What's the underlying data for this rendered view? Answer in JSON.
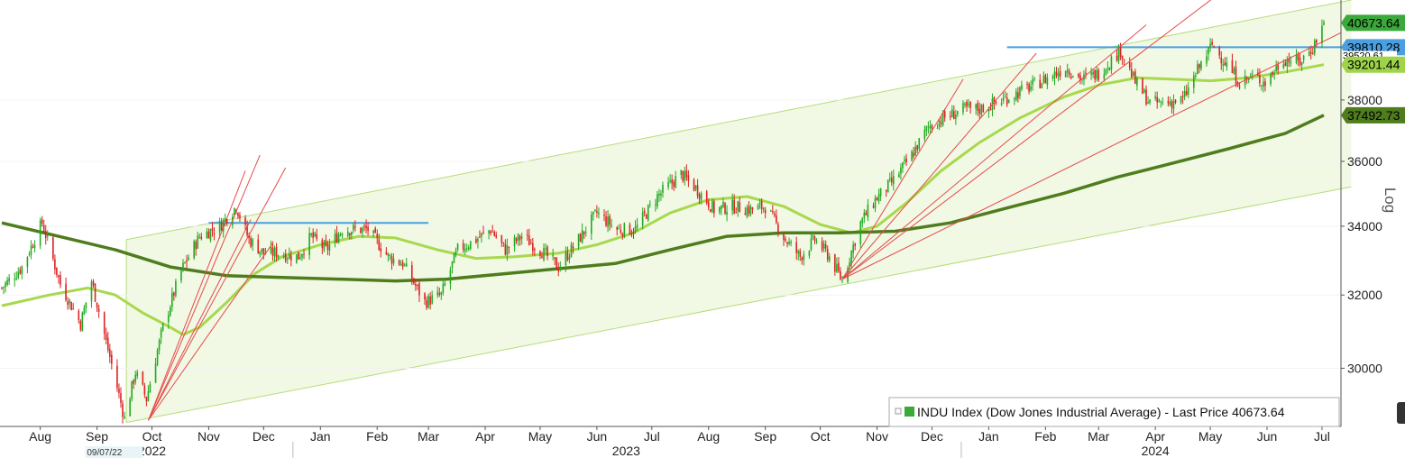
{
  "chart_data": {
    "type": "candlestick",
    "title": "",
    "scale": "log",
    "scale_label": "Log",
    "ylim": [
      28500,
      41500
    ],
    "y_ticks": [
      30000,
      32000,
      34000,
      36000,
      38000
    ],
    "months": [
      {
        "label": "Aug",
        "x": "2022-08-15"
      },
      {
        "label": "Sep",
        "x": "2022-09-15"
      },
      {
        "label": "Oct",
        "x": "2022-10-15"
      },
      {
        "label": "Nov",
        "x": "2022-11-15"
      },
      {
        "label": "Dec",
        "x": "2022-12-15"
      },
      {
        "label": "Jan",
        "x": "2023-01-15"
      },
      {
        "label": "Feb",
        "x": "2023-02-15"
      },
      {
        "label": "Mar",
        "x": "2023-03-15"
      },
      {
        "label": "Apr",
        "x": "2023-04-15"
      },
      {
        "label": "May",
        "x": "2023-05-15"
      },
      {
        "label": "Jun",
        "x": "2023-06-15"
      },
      {
        "label": "Jul",
        "x": "2023-07-15"
      },
      {
        "label": "Aug",
        "x": "2023-08-15"
      },
      {
        "label": "Sep",
        "x": "2023-09-15"
      },
      {
        "label": "Oct",
        "x": "2023-10-15"
      },
      {
        "label": "Nov",
        "x": "2023-11-15"
      },
      {
        "label": "Dec",
        "x": "2023-12-15"
      },
      {
        "label": "Jan",
        "x": "2024-01-15"
      },
      {
        "label": "Feb",
        "x": "2024-02-15"
      },
      {
        "label": "Mar",
        "x": "2024-03-15"
      },
      {
        "label": "Apr",
        "x": "2024-04-15"
      },
      {
        "label": "May",
        "x": "2024-05-15"
      },
      {
        "label": "Jun",
        "x": "2024-06-15"
      },
      {
        "label": "Jul",
        "x": "2024-07-15"
      }
    ],
    "years": [
      {
        "label": "2022",
        "x": "2022-10-15"
      },
      {
        "label": "2023",
        "x": "2023-07-01"
      },
      {
        "label": "2024",
        "x": "2024-04-15"
      }
    ],
    "year_separators": [
      "2022-12-31",
      "2023-12-31"
    ],
    "cursor_date": "09/07/22",
    "cursor_date_x": "2022-09-07",
    "series": [
      {
        "name": "INDU Index",
        "kind": "price",
        "color": "#22aa22",
        "down_color": "#dd2222",
        "points": [
          [
            "2022-07-25",
            32200
          ],
          [
            "2022-08-05",
            32800
          ],
          [
            "2022-08-16",
            34100
          ],
          [
            "2022-08-26",
            32300
          ],
          [
            "2022-09-06",
            31200
          ],
          [
            "2022-09-12",
            32400
          ],
          [
            "2022-09-20",
            30700
          ],
          [
            "2022-09-30",
            28700
          ],
          [
            "2022-10-06",
            29900
          ],
          [
            "2022-10-12",
            29200
          ],
          [
            "2022-10-21",
            31100
          ],
          [
            "2022-10-31",
            32700
          ],
          [
            "2022-11-10",
            33700
          ],
          [
            "2022-11-21",
            34000
          ],
          [
            "2022-11-30",
            34600
          ],
          [
            "2022-12-07",
            33600
          ],
          [
            "2022-12-15",
            33200
          ],
          [
            "2022-12-23",
            33200
          ],
          [
            "2023-01-03",
            33100
          ],
          [
            "2023-01-10",
            33700
          ],
          [
            "2023-01-18",
            33300
          ],
          [
            "2023-01-27",
            33900
          ],
          [
            "2023-02-03",
            33900
          ],
          [
            "2023-02-10",
            33900
          ],
          [
            "2023-02-21",
            33100
          ],
          [
            "2023-03-01",
            32900
          ],
          [
            "2023-03-13",
            31800
          ],
          [
            "2023-03-22",
            32000
          ],
          [
            "2023-03-31",
            33300
          ],
          [
            "2023-04-10",
            33600
          ],
          [
            "2023-04-18",
            33900
          ],
          [
            "2023-04-26",
            33300
          ],
          [
            "2023-05-05",
            33700
          ],
          [
            "2023-05-15",
            33300
          ],
          [
            "2023-05-25",
            32800
          ],
          [
            "2023-06-05",
            33600
          ],
          [
            "2023-06-15",
            34400
          ],
          [
            "2023-06-26",
            33900
          ],
          [
            "2023-07-06",
            33900
          ],
          [
            "2023-07-18",
            34900
          ],
          [
            "2023-07-31",
            35600
          ],
          [
            "2023-08-09",
            35100
          ],
          [
            "2023-08-18",
            34500
          ],
          [
            "2023-08-28",
            34600
          ],
          [
            "2023-09-07",
            34500
          ],
          [
            "2023-09-15",
            34600
          ],
          [
            "2023-09-26",
            33600
          ],
          [
            "2023-10-04",
            33100
          ],
          [
            "2023-10-12",
            33600
          ],
          [
            "2023-10-20",
            33100
          ],
          [
            "2023-10-27",
            32400
          ],
          [
            "2023-11-06",
            34100
          ],
          [
            "2023-11-14",
            34800
          ],
          [
            "2023-11-24",
            35400
          ],
          [
            "2023-12-04",
            36200
          ],
          [
            "2023-12-13",
            37100
          ],
          [
            "2023-12-21",
            37400
          ],
          [
            "2024-01-02",
            37700
          ],
          [
            "2024-01-10",
            37700
          ],
          [
            "2024-01-19",
            37900
          ],
          [
            "2024-01-26",
            38100
          ],
          [
            "2024-02-05",
            38400
          ],
          [
            "2024-02-15",
            38700
          ],
          [
            "2024-02-26",
            39100
          ],
          [
            "2024-03-06",
            38700
          ],
          [
            "2024-03-15",
            38900
          ],
          [
            "2024-03-27",
            39700
          ],
          [
            "2024-04-04",
            38600
          ],
          [
            "2024-04-12",
            37900
          ],
          [
            "2024-04-19",
            37900
          ],
          [
            "2024-04-30",
            38000
          ],
          [
            "2024-05-08",
            39000
          ],
          [
            "2024-05-16",
            39900
          ],
          [
            "2024-05-24",
            39200
          ],
          [
            "2024-05-31",
            38600
          ],
          [
            "2024-06-07",
            38800
          ],
          [
            "2024-06-14",
            38600
          ],
          [
            "2024-06-24",
            39400
          ],
          [
            "2024-07-03",
            39300
          ],
          [
            "2024-07-10",
            39800
          ],
          [
            "2024-07-16",
            40673.64
          ]
        ]
      },
      {
        "name": "Moving average (short)",
        "kind": "ma",
        "color": "#a8d84e",
        "points": [
          [
            "2022-07-25",
            31700
          ],
          [
            "2022-08-20",
            32000
          ],
          [
            "2022-09-10",
            32200
          ],
          [
            "2022-09-25",
            32000
          ],
          [
            "2022-10-10",
            31500
          ],
          [
            "2022-10-25",
            31100
          ],
          [
            "2022-11-01",
            30900
          ],
          [
            "2022-11-10",
            31100
          ],
          [
            "2022-11-25",
            31800
          ],
          [
            "2022-12-10",
            32600
          ],
          [
            "2022-12-25",
            33100
          ],
          [
            "2023-01-15",
            33450
          ],
          [
            "2023-02-05",
            33700
          ],
          [
            "2023-02-25",
            33650
          ],
          [
            "2023-03-20",
            33300
          ],
          [
            "2023-04-10",
            33050
          ],
          [
            "2023-05-01",
            33100
          ],
          [
            "2023-05-25",
            33200
          ],
          [
            "2023-06-15",
            33450
          ],
          [
            "2023-07-05",
            33800
          ],
          [
            "2023-07-25",
            34400
          ],
          [
            "2023-08-15",
            34800
          ],
          [
            "2023-09-05",
            34900
          ],
          [
            "2023-09-25",
            34600
          ],
          [
            "2023-10-15",
            34050
          ],
          [
            "2023-11-01",
            33800
          ],
          [
            "2023-11-15",
            34000
          ],
          [
            "2023-12-01",
            34700
          ],
          [
            "2023-12-20",
            35700
          ],
          [
            "2024-01-10",
            36600
          ],
          [
            "2024-02-01",
            37400
          ],
          [
            "2024-02-25",
            38100
          ],
          [
            "2024-03-15",
            38500
          ],
          [
            "2024-04-05",
            38750
          ],
          [
            "2024-04-25",
            38700
          ],
          [
            "2024-05-15",
            38650
          ],
          [
            "2024-06-05",
            38750
          ],
          [
            "2024-06-25",
            38950
          ],
          [
            "2024-07-16",
            39201.44
          ]
        ]
      },
      {
        "name": "Moving average (long)",
        "kind": "ma",
        "color": "#4f7d1d",
        "points": [
          [
            "2022-07-25",
            34100
          ],
          [
            "2022-08-25",
            33700
          ],
          [
            "2022-09-25",
            33300
          ],
          [
            "2022-10-25",
            32800
          ],
          [
            "2022-11-25",
            32550
          ],
          [
            "2022-12-25",
            32500
          ],
          [
            "2023-01-25",
            32450
          ],
          [
            "2023-02-25",
            32400
          ],
          [
            "2023-03-25",
            32450
          ],
          [
            "2023-04-25",
            32600
          ],
          [
            "2023-05-25",
            32750
          ],
          [
            "2023-06-25",
            32900
          ],
          [
            "2023-07-25",
            33300
          ],
          [
            "2023-08-25",
            33700
          ],
          [
            "2023-09-25",
            33800
          ],
          [
            "2023-10-25",
            33800
          ],
          [
            "2023-11-25",
            33850
          ],
          [
            "2023-12-25",
            34100
          ],
          [
            "2024-01-25",
            34550
          ],
          [
            "2024-02-25",
            35000
          ],
          [
            "2024-03-25",
            35500
          ],
          [
            "2024-04-25",
            35950
          ],
          [
            "2024-05-25",
            36400
          ],
          [
            "2024-06-25",
            36900
          ],
          [
            "2024-07-16",
            37492.73
          ]
        ]
      }
    ],
    "channel": {
      "fill": "#f1f8e4",
      "line_color": "#b5dd7a",
      "start": "2022-10-01",
      "end": "2024-07-31",
      "upper_start": 33600,
      "upper_end": 41500,
      "lower_start": 28600,
      "lower_end": 35200
    },
    "resistance_lines": [
      {
        "start": "2022-11-15",
        "end": "2023-03-15",
        "value": 34100,
        "color": "#4a9fe0"
      },
      {
        "start": "2024-01-25",
        "end": "2024-07-31",
        "value": 39810.28,
        "color": "#4a9fe0"
      }
    ],
    "fan_lines": [
      {
        "from": [
          "2022-10-13",
          28650
        ],
        "to": [
          [
            "2022-12-05",
            35700
          ],
          [
            "2022-12-13",
            36200
          ],
          [
            "2022-12-27",
            35800
          ],
          [
            "2022-12-08",
            34200
          ],
          [
            "2022-12-20",
            33500
          ]
        ]
      },
      {
        "from": [
          "2023-10-27",
          32450
        ],
        "to": [
          [
            "2024-01-01",
            38700
          ],
          [
            "2024-02-10",
            39600
          ],
          [
            "2024-04-10",
            40600
          ],
          [
            "2024-05-25",
            42000
          ],
          [
            "2024-07-31",
            40500
          ]
        ]
      }
    ],
    "fan_color": "#e54a4a",
    "price_tags": [
      {
        "value": 40673.64,
        "label": "40673.64",
        "bg": "#3aa83a",
        "fg": "#000000"
      },
      {
        "value": 39810.28,
        "label": "39810.28",
        "bg": "#4a9fe0",
        "fg": "#000000"
      },
      {
        "value": 39520.61,
        "label": "39520.61",
        "bg": "#ffffff",
        "fg": "#000000",
        "small": true
      },
      {
        "value": 39201.44,
        "label": "39201.44",
        "bg": "#9ed34a",
        "fg": "#000000"
      },
      {
        "value": 37492.73,
        "label": "37492.73",
        "bg": "#4f7d1d",
        "fg": "#000000"
      }
    ],
    "legend": "INDU Index (Dow Jones Industrial Average) - Last Price 40673.64",
    "legend_color": "#3aa83a"
  }
}
